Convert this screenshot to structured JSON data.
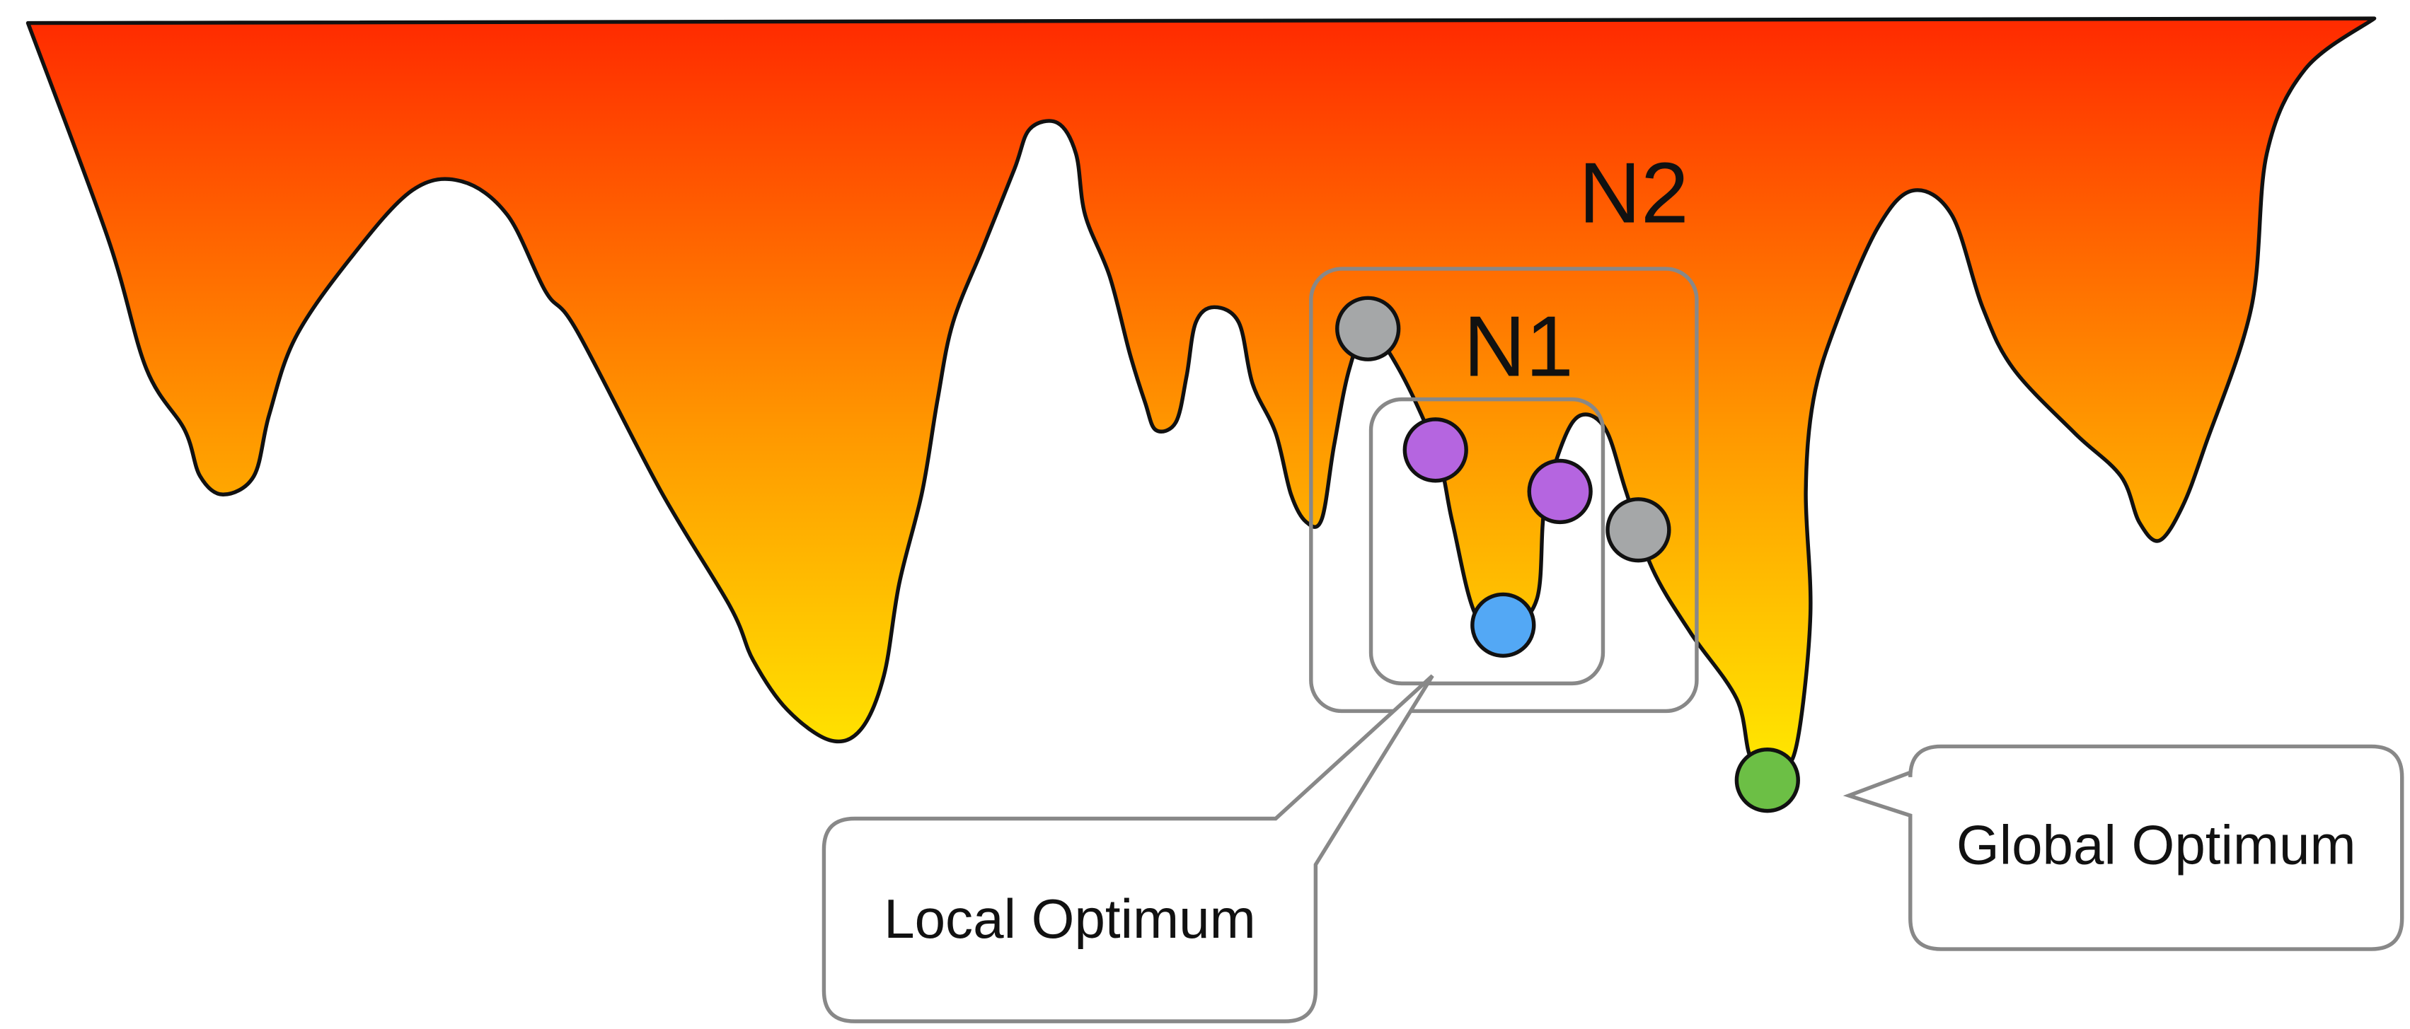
{
  "labels": {
    "n2": "N2",
    "n1": "N1"
  },
  "callouts": {
    "local": "Local Optimum",
    "global": "Global Optimum"
  }
}
